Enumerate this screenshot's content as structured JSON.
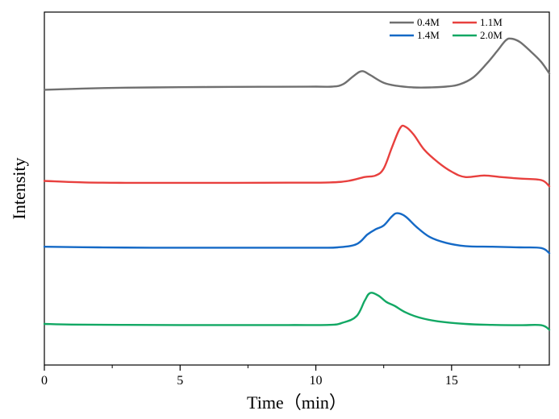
{
  "chart_data": {
    "type": "line",
    "title": "",
    "xlabel": "Time（min）",
    "ylabel": "Intensity",
    "xlim": [
      0,
      18.6
    ],
    "xticks": [
      0,
      5,
      10,
      15
    ],
    "xtick_labels": [
      "0",
      "5",
      "10",
      "15"
    ],
    "yticks_shown": false,
    "grid": false,
    "legend_position": "top-right",
    "series": [
      {
        "name": "0.4M",
        "color": "#707070",
        "points": [
          [
            0,
            0.34
          ],
          [
            2,
            0.36
          ],
          [
            4,
            0.37
          ],
          [
            6,
            0.375
          ],
          [
            8,
            0.378
          ],
          [
            10,
            0.38
          ],
          [
            10.6,
            0.38
          ],
          [
            11.0,
            0.41
          ],
          [
            11.4,
            0.52
          ],
          [
            11.7,
            0.58
          ],
          [
            12.0,
            0.53
          ],
          [
            12.5,
            0.43
          ],
          [
            13.0,
            0.39
          ],
          [
            13.6,
            0.37
          ],
          [
            14.2,
            0.37
          ],
          [
            14.8,
            0.38
          ],
          [
            15.3,
            0.41
          ],
          [
            15.8,
            0.5
          ],
          [
            16.3,
            0.68
          ],
          [
            16.7,
            0.85
          ],
          [
            17.0,
            0.98
          ],
          [
            17.2,
            1.0
          ],
          [
            17.5,
            0.96
          ],
          [
            17.9,
            0.84
          ],
          [
            18.3,
            0.7
          ],
          [
            18.6,
            0.55
          ]
        ]
      },
      {
        "name": "1.1M",
        "color": "#e8403e",
        "points": [
          [
            0,
            0.12
          ],
          [
            1.5,
            0.1
          ],
          [
            3,
            0.095
          ],
          [
            5,
            0.095
          ],
          [
            7,
            0.095
          ],
          [
            9,
            0.097
          ],
          [
            10.5,
            0.1
          ],
          [
            11.2,
            0.12
          ],
          [
            11.8,
            0.17
          ],
          [
            12.2,
            0.19
          ],
          [
            12.5,
            0.28
          ],
          [
            12.8,
            0.55
          ],
          [
            13.1,
            0.8
          ],
          [
            13.3,
            0.82
          ],
          [
            13.6,
            0.72
          ],
          [
            14.0,
            0.52
          ],
          [
            14.5,
            0.36
          ],
          [
            15.0,
            0.24
          ],
          [
            15.5,
            0.17
          ],
          [
            16.2,
            0.19
          ],
          [
            16.8,
            0.17
          ],
          [
            17.5,
            0.15
          ],
          [
            18.3,
            0.13
          ],
          [
            18.6,
            0.05
          ]
        ]
      },
      {
        "name": "1.4M",
        "color": "#1469c6",
        "points": [
          [
            0,
            0.11
          ],
          [
            2,
            0.1
          ],
          [
            4,
            0.095
          ],
          [
            6,
            0.095
          ],
          [
            8,
            0.095
          ],
          [
            10,
            0.095
          ],
          [
            10.8,
            0.1
          ],
          [
            11.5,
            0.15
          ],
          [
            11.9,
            0.3
          ],
          [
            12.2,
            0.38
          ],
          [
            12.5,
            0.44
          ],
          [
            12.8,
            0.58
          ],
          [
            13.0,
            0.63
          ],
          [
            13.3,
            0.58
          ],
          [
            13.7,
            0.42
          ],
          [
            14.2,
            0.26
          ],
          [
            14.8,
            0.17
          ],
          [
            15.5,
            0.12
          ],
          [
            16.5,
            0.11
          ],
          [
            17.5,
            0.1
          ],
          [
            18.3,
            0.09
          ],
          [
            18.6,
            0.01
          ]
        ]
      },
      {
        "name": "2.0M",
        "color": "#12a864",
        "points": [
          [
            0,
            0.1
          ],
          [
            1,
            0.09
          ],
          [
            3,
            0.085
          ],
          [
            5,
            0.082
          ],
          [
            7,
            0.082
          ],
          [
            9,
            0.083
          ],
          [
            10.5,
            0.085
          ],
          [
            11.0,
            0.12
          ],
          [
            11.5,
            0.22
          ],
          [
            11.8,
            0.46
          ],
          [
            12.0,
            0.58
          ],
          [
            12.3,
            0.54
          ],
          [
            12.6,
            0.44
          ],
          [
            12.9,
            0.38
          ],
          [
            13.3,
            0.28
          ],
          [
            13.8,
            0.2
          ],
          [
            14.5,
            0.14
          ],
          [
            15.5,
            0.1
          ],
          [
            16.5,
            0.085
          ],
          [
            17.5,
            0.08
          ],
          [
            18.3,
            0.08
          ],
          [
            18.6,
            0.01
          ]
        ]
      }
    ]
  }
}
